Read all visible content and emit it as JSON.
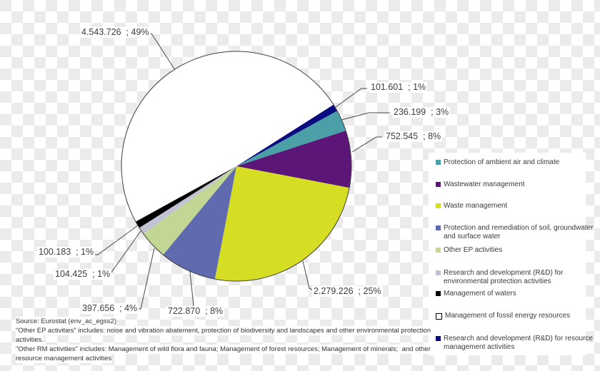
{
  "chart_data": {
    "type": "pie",
    "title": "",
    "direction": "clockwise",
    "start_angle_deg": 28.8,
    "legend_position": "right",
    "slices": [
      {
        "label": "Protection of ambient air and climate",
        "legend_label": "Protection of ambient air and climate",
        "value": 236199,
        "percent": 3,
        "data_label": "236.199  ; 3%",
        "color": "#4AA0A6"
      },
      {
        "label": "Wastewater management",
        "legend_label": "Wastewater management",
        "value": 752545,
        "percent": 8,
        "data_label": "752.545  ; 8%",
        "color": "#5B1677"
      },
      {
        "label": "Waste management",
        "legend_label": "Waste management",
        "value": 2279226,
        "percent": 25,
        "data_label": "2.279.226  ; 25%",
        "color": "#D6DE23"
      },
      {
        "label": "Protection and remediation of soil, groundwater and surface water",
        "legend_label": "Protection and remediation of soil, groundwater\nand surface water",
        "value": 722870,
        "percent": 8,
        "data_label": "722.870  ; 8%",
        "color": "#5F6BAE"
      },
      {
        "label": "Other EP activities",
        "legend_label": "Other EP activities",
        "value": 397656,
        "percent": 4,
        "data_label": "397.656  ; 4%",
        "color": "#C3D795"
      },
      {
        "label": "Research and development (R&D) for environmental protection activities",
        "legend_label": "Research and development (R&D) for\nenvironmental protection activities",
        "value": 104425,
        "percent": 1,
        "data_label": "104.425  ; 1%",
        "color": "#C1C2D3"
      },
      {
        "label": "Management of waters",
        "legend_label": "Management of waters",
        "value": 100183,
        "percent": 1,
        "data_label": "100.183  ; 1%",
        "color": "#000000"
      },
      {
        "label": "Management of fossil energy resources",
        "legend_label": "Management of fossil energy resources",
        "value": 4543726,
        "percent": 49,
        "data_label": "4.543.726  ; 49%",
        "color": "#FFFFFF"
      },
      {
        "label": "Research and development (R&D) for resource management activities",
        "legend_label": "Research and development (R&D) for resource\nmanagement activities",
        "value": 101601,
        "percent": 1,
        "data_label": "101.601  ; 1%",
        "color": "#0B0B80"
      }
    ]
  },
  "footnotes": {
    "lines": [
      "Source: Eurostat (env_ac_egss2)",
      "\"Other EP activities\" includes: noise and vibration abatement, protection of biodiversity and landscapes and other environmental protection",
      "activities.",
      "\"Other RM activities\" includes: Management of wild flora and fauna; Management of forest resources; Management of minerals;  and other",
      "resource management activities"
    ]
  }
}
